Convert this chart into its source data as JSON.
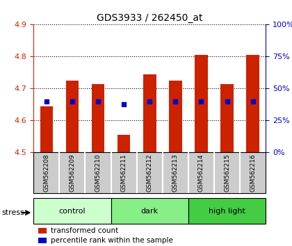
{
  "title": "GDS3933 / 262450_at",
  "samples": [
    "GSM562208",
    "GSM562209",
    "GSM562210",
    "GSM562211",
    "GSM562212",
    "GSM562213",
    "GSM562214",
    "GSM562215",
    "GSM562216"
  ],
  "transformed_count": [
    4.645,
    4.725,
    4.715,
    4.555,
    4.745,
    4.725,
    4.805,
    4.715,
    4.805
  ],
  "percentile_rank": [
    40,
    40,
    40,
    38,
    40,
    40,
    40,
    40,
    40
  ],
  "ylim_left": [
    4.5,
    4.9
  ],
  "ylim_right": [
    0,
    100
  ],
  "yticks_left": [
    4.5,
    4.6,
    4.7,
    4.8,
    4.9
  ],
  "yticks_right": [
    0,
    25,
    50,
    75,
    100
  ],
  "ytick_labels_right": [
    "0%",
    "25%",
    "50%",
    "75%",
    "100%"
  ],
  "bar_color": "#cc2200",
  "blue_color": "#0000cc",
  "groups": [
    {
      "label": "control",
      "samples": [
        0,
        1,
        2
      ],
      "color": "#ccffcc"
    },
    {
      "label": "dark",
      "samples": [
        3,
        4,
        5
      ],
      "color": "#88ee88"
    },
    {
      "label": "high light",
      "samples": [
        6,
        7,
        8
      ],
      "color": "#44cc44"
    }
  ],
  "stress_label": "stress",
  "tick_label_area_color": "#cccccc",
  "legend_red_label": "transformed count",
  "legend_blue_label": "percentile rank within the sample",
  "base_value": 4.5
}
